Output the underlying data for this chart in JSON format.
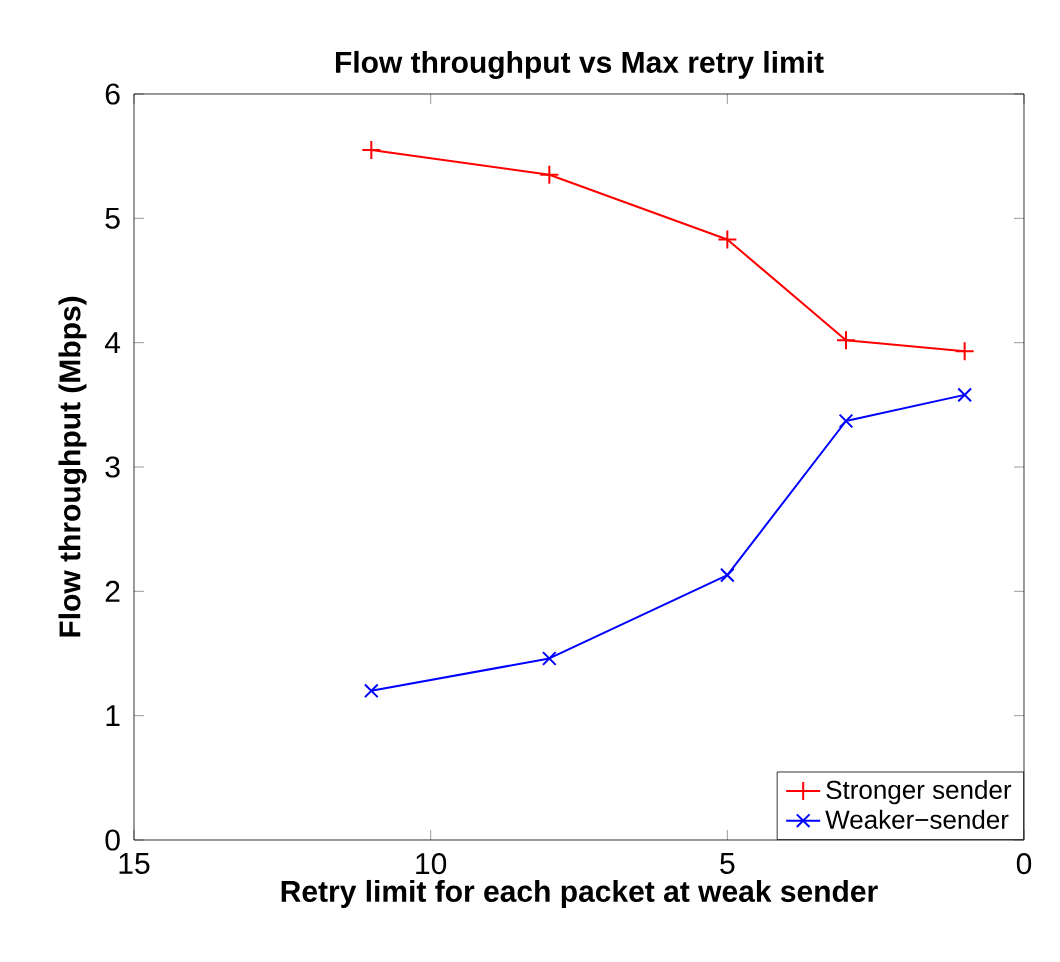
{
  "chart_data": {
    "type": "line",
    "title": "Flow throughput vs Max retry limit",
    "xlabel": "Retry limit for each packet at weak sender",
    "ylabel": "Flow throughput (Mbps)",
    "x": [
      11,
      8,
      5,
      3,
      1
    ],
    "series": [
      {
        "name": "Stronger sender",
        "color": "#ff0000",
        "marker": "plus",
        "values": [
          5.55,
          5.35,
          4.83,
          4.02,
          3.93
        ]
      },
      {
        "name": "Weaker−sender",
        "color": "#0000ff",
        "marker": "cross",
        "values": [
          1.2,
          1.46,
          2.13,
          3.37,
          3.58
        ]
      }
    ],
    "xlim": [
      15,
      0
    ],
    "ylim": [
      0,
      6
    ],
    "xticks": [
      15,
      10,
      5,
      0
    ],
    "yticks": [
      0,
      1,
      2,
      3,
      4,
      5,
      6
    ],
    "legend": "bottom right",
    "line_style": "solid",
    "grid": false
  }
}
